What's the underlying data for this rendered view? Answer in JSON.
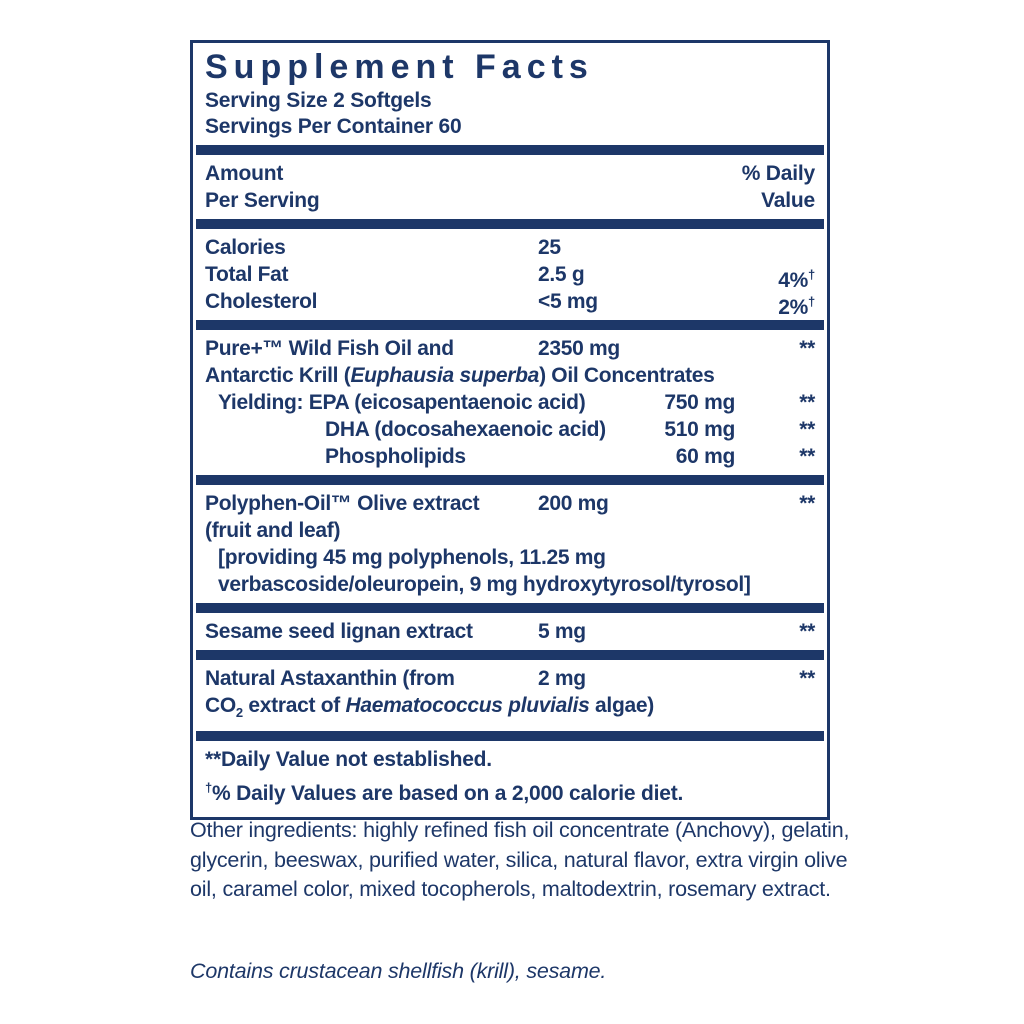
{
  "colors": {
    "navy": "#1d3768",
    "page_bg": "#ffffff"
  },
  "supplement_panel": {
    "title": "Supplement Facts",
    "serving_size": "Serving Size 2 Softgels",
    "servings_per_container": "Servings Per Container 60",
    "columns": {
      "amount_line1": "Amount",
      "amount_line2": "Per Serving",
      "daily_value_line1": "% Daily",
      "daily_value_line2": "Value"
    },
    "macros": {
      "calories": {
        "label": "Calories",
        "amount": "25"
      },
      "total_fat": {
        "label": "Total Fat",
        "amount": "2.5 g",
        "dv": "4%",
        "dv_mark": "†"
      },
      "cholesterol": {
        "label": "Cholesterol",
        "amount": "<5 mg",
        "dv": "2%",
        "dv_mark": "†"
      }
    },
    "fish_oil": {
      "line1_label": "Pure+™ Wild Fish Oil and",
      "amount": "2350 mg",
      "dv": "**",
      "line2_pre": "Antarctic Krill (",
      "line2_species": "Euphausia superba",
      "line2_post": ") Oil Concentrates",
      "yielding_prefix": "Yielding: ",
      "epa": {
        "label": "EPA (eicosapentaenoic acid)",
        "amount": "750 mg",
        "dv": "**"
      },
      "dha": {
        "label": "DHA (docosahexaenoic acid)",
        "amount": "510 mg",
        "dv": "**"
      },
      "phospholipids": {
        "label": "Phospholipids",
        "amount": "60 mg",
        "dv": "**"
      }
    },
    "polyphen_oil": {
      "line1_label": "Polyphen-Oil™ Olive extract",
      "amount": "200 mg",
      "dv": "**",
      "line2": "(fruit and leaf)",
      "line3": "[providing 45 mg polyphenols, 11.25 mg",
      "line4": "verbascoside/oleuropein, 9 mg hydroxytyrosol/tyrosol]"
    },
    "sesame": {
      "label": "Sesame seed lignan extract",
      "amount": "5 mg",
      "dv": "**"
    },
    "astaxanthin": {
      "line1_label": "Natural Astaxanthin (from",
      "amount": "2 mg",
      "dv": "**",
      "line2_pre": "CO",
      "line2_sub": "2",
      "line2_mid": " extract of ",
      "line2_species": "Haematococcus pluvialis",
      "line2_post": " algae)"
    },
    "footnotes": {
      "daily_value_note": "**Daily Value not established.",
      "calorie_note_mark": "†",
      "calorie_note": "% Daily Values are based on a 2,000 calorie diet."
    }
  },
  "below_panel": {
    "other_ingredients": "Other ingredients: highly refined fish oil concentrate (Anchovy), gelatin, glycerin, beeswax, purified water, silica, natural flavor, extra virgin olive oil, caramel color, mixed tocopherols, maltodextrin, rosemary extract.",
    "allergen_statement": "Contains crustacean shellfish (krill), sesame."
  }
}
